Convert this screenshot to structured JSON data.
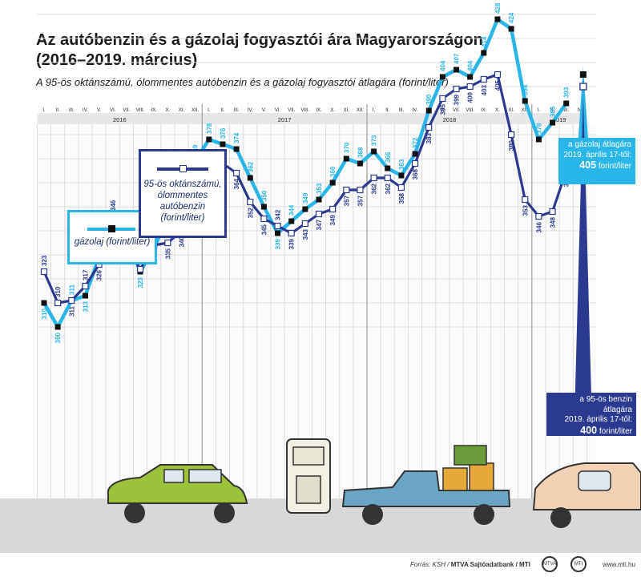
{
  "header": {
    "title_line1": "Az autóbenzin és a gázolaj fogyasztói ára Magyarországon",
    "title_line2": "(2016–2019. március)",
    "subtitle": "A 95-ös oktánszámú, ólommentes autóbenzin és a gázolaj fogyasztói átlagára (forint/liter)"
  },
  "colors": {
    "gasoil": "#29b5e8",
    "benzin": "#2b3990",
    "year_band": "#e7e7e7",
    "grid": "#dcdcdc",
    "road": "#d8d8d8"
  },
  "legend": {
    "gasoil": "gázolaj (forint/liter)",
    "benzin": "95-ös oktánszámú, ólommentes autóbenzin (forint/liter)"
  },
  "callouts": {
    "gasoil_line1": "a gázolaj átlagára",
    "gasoil_line2": "2019. április 17-től:",
    "gasoil_value": "405",
    "gasoil_unit": "forint/liter",
    "benzin_line1": "a 95-ös benzin átlagára",
    "benzin_line2": "2019. április 17-től:",
    "benzin_value": "400",
    "benzin_unit": "forint/liter"
  },
  "footer": {
    "source_prefix": "Forrás: KSH / ",
    "source_bold": "MTVA Sajtóadatbank / MTI",
    "url": "www.mti.hu",
    "logo1": "MTVA",
    "logo2": "MTI"
  },
  "chart_data": {
    "type": "line",
    "months": [
      "I.",
      "II.",
      "III.",
      "IV.",
      "V.",
      "VI.",
      "VII.",
      "VIII.",
      "IX.",
      "X.",
      "XI.",
      "XII."
    ],
    "years": [
      "2016",
      "2017",
      "2018",
      "2019"
    ],
    "extra_months_2019": [
      "I.",
      "II.",
      "III.",
      "IV."
    ],
    "ylim": [
      290,
      440
    ],
    "series": [
      {
        "name": "gázolaj (forint/liter)",
        "key": "gasoil",
        "values": [
          310,
          300,
          311,
          313,
          329,
          335,
          337,
          323,
          333,
          345,
          353,
          369,
          378,
          376,
          374,
          362,
          350,
          339,
          344,
          349,
          353,
          360,
          370,
          368,
          373,
          366,
          363,
          372,
          390,
          404,
          407,
          404,
          414,
          428,
          424,
          394,
          378,
          385,
          393
        ]
      },
      {
        "name": "95-ös oktánszámú, ólommentes autóbenzin (forint/liter)",
        "key": "benzin",
        "values": [
          323,
          310,
          311,
          317,
          326,
          346,
          334,
          324,
          334,
          335,
          340,
          354,
          367,
          368,
          364,
          352,
          345,
          342,
          339,
          343,
          347,
          349,
          357,
          357,
          362,
          362,
          358,
          368,
          383,
          395,
          399,
          400,
          403,
          405,
          380,
          353,
          346,
          348,
          365
        ]
      }
    ],
    "announced": {
      "label": "2019. április 17-től",
      "gasoil": 405,
      "benzin": 400
    }
  }
}
